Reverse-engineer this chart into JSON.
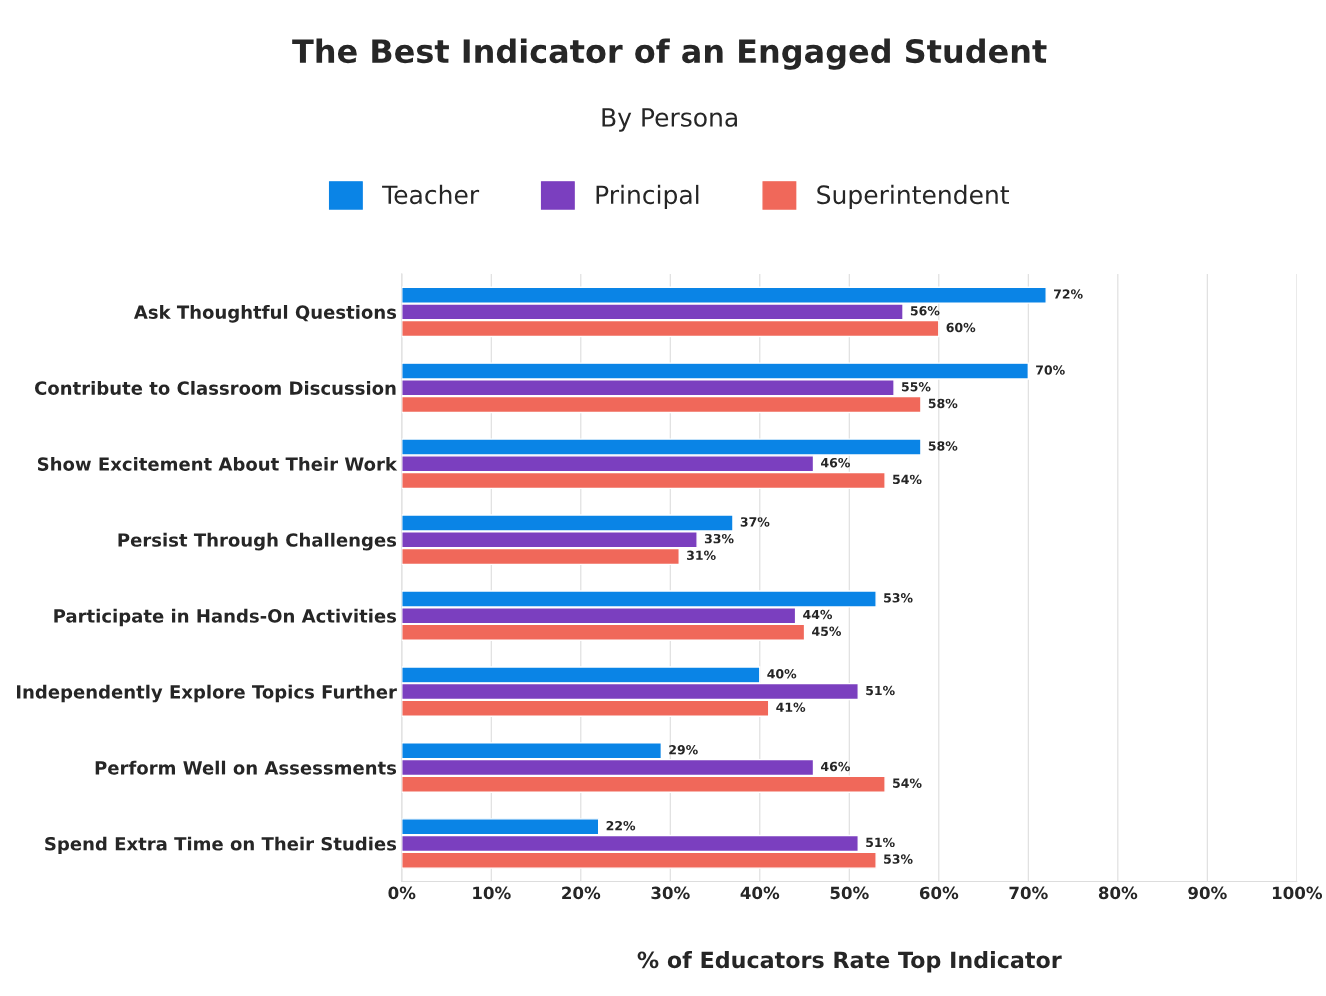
{
  "chart_data": {
    "type": "bar",
    "orientation": "horizontal",
    "title": "The Best Indicator of an Engaged Student",
    "subtitle": "By Persona",
    "xlabel": "% of Educators Rate Top Indicator",
    "categories": [
      "Ask Thoughtful Questions",
      "Contribute to Classroom Discussion",
      "Show Excitement About Their Work",
      "Persist Through Challenges",
      "Participate in Hands-On Activities",
      "Independently Explore Topics Further",
      "Perform Well on Assessments",
      "Spend Extra Time on Their Studies"
    ],
    "series": [
      {
        "name": "Teacher",
        "color": "#0a84e6",
        "values": [
          72,
          70,
          58,
          37,
          53,
          40,
          29,
          22
        ],
        "value_labels": [
          "72%",
          "70%",
          "58%",
          "37%",
          "53%",
          "40%",
          "29%",
          "22%"
        ]
      },
      {
        "name": "Principal",
        "color": "#7b3fbf",
        "values": [
          56,
          55,
          46,
          33,
          44,
          51,
          46,
          51
        ],
        "value_labels": [
          "56%",
          "55%",
          "46%",
          "33%",
          "44%",
          "51%",
          "46%",
          "51%"
        ]
      },
      {
        "name": "Superintendent",
        "color": "#f0685a",
        "values": [
          60,
          58,
          54,
          31,
          45,
          41,
          54,
          53
        ],
        "value_labels": [
          "60%",
          "58%",
          "54%",
          "31%",
          "45%",
          "41%",
          "54%",
          "53%"
        ]
      }
    ],
    "xlim": [
      0,
      100
    ],
    "xticks": [
      {
        "value": 0,
        "label": "0%"
      },
      {
        "value": 10,
        "label": "10%"
      },
      {
        "value": 20,
        "label": "20%"
      },
      {
        "value": 30,
        "label": "30%"
      },
      {
        "value": 40,
        "label": "40%"
      },
      {
        "value": 50,
        "label": "50%"
      },
      {
        "value": 60,
        "label": "60%"
      },
      {
        "value": 70,
        "label": "70%"
      },
      {
        "value": 80,
        "label": "80%"
      },
      {
        "value": 90,
        "label": "90%"
      },
      {
        "value": 100,
        "label": "100%"
      }
    ],
    "grid": "x",
    "legend": "top"
  }
}
